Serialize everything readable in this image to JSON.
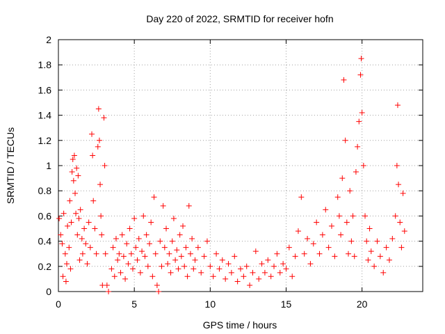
{
  "chart_data": {
    "type": "scatter",
    "title": "Day 220 of 2022, SRMTID for receiver hofn",
    "xlabel": "GPS time / hours",
    "ylabel": "SRMTID / TECUs",
    "xlim": [
      0,
      24
    ],
    "ylim": [
      0,
      2
    ],
    "xticks": [
      0,
      5,
      10,
      15,
      20
    ],
    "xtick_labels": [
      "0",
      "5",
      "10",
      "15",
      "20"
    ],
    "yticks": [
      0,
      0.2,
      0.4,
      0.6,
      0.8,
      1,
      1.2,
      1.4,
      1.6,
      1.8,
      2
    ],
    "ytick_labels": [
      "0",
      "0.2",
      "0.4",
      "0.6",
      "0.8",
      "1",
      "1.2",
      "1.4",
      "1.6",
      "1.8",
      "2"
    ],
    "grid": true,
    "marker": "+",
    "series": [
      {
        "name": "SRMTID",
        "color": "#ff0000",
        "points": [
          [
            0.05,
            0.58
          ],
          [
            0.15,
            0.45
          ],
          [
            0.25,
            0.38
          ],
          [
            0.3,
            0.12
          ],
          [
            0.35,
            0.62
          ],
          [
            0.45,
            0.3
          ],
          [
            0.5,
            0.08
          ],
          [
            0.55,
            0.22
          ],
          [
            0.6,
            0.52
          ],
          [
            0.7,
            0.35
          ],
          [
            0.75,
            0.72
          ],
          [
            0.8,
            0.18
          ],
          [
            0.85,
            0.55
          ],
          [
            0.9,
            0.95
          ],
          [
            0.95,
            1.05
          ],
          [
            1.0,
            0.88
          ],
          [
            1.05,
            1.08
          ],
          [
            1.1,
            0.78
          ],
          [
            1.15,
            0.62
          ],
          [
            1.2,
            0.98
          ],
          [
            1.25,
            0.45
          ],
          [
            1.3,
            0.92
          ],
          [
            1.35,
            0.58
          ],
          [
            1.4,
            0.25
          ],
          [
            1.45,
            0.65
          ],
          [
            1.55,
            0.42
          ],
          [
            1.6,
            0.3
          ],
          [
            1.7,
            0.5
          ],
          [
            1.8,
            0.38
          ],
          [
            1.9,
            0.22
          ],
          [
            2.0,
            0.55
          ],
          [
            2.1,
            0.35
          ],
          [
            2.2,
            1.25
          ],
          [
            2.25,
            1.08
          ],
          [
            2.3,
            0.72
          ],
          [
            2.4,
            0.5
          ],
          [
            2.5,
            0.3
          ],
          [
            2.6,
            1.15
          ],
          [
            2.65,
            1.45
          ],
          [
            2.7,
            1.2
          ],
          [
            2.75,
            0.85
          ],
          [
            2.8,
            0.6
          ],
          [
            2.85,
            0.45
          ],
          [
            2.9,
            0.05
          ],
          [
            3.0,
            1.38
          ],
          [
            3.05,
            1.0
          ],
          [
            3.1,
            0.3
          ],
          [
            3.2,
            0.05
          ],
          [
            3.3,
            0.0
          ],
          [
            3.5,
            0.18
          ],
          [
            3.6,
            0.35
          ],
          [
            3.7,
            0.12
          ],
          [
            3.8,
            0.42
          ],
          [
            3.9,
            0.25
          ],
          [
            4.0,
            0.3
          ],
          [
            4.1,
            0.15
          ],
          [
            4.2,
            0.45
          ],
          [
            4.3,
            0.28
          ],
          [
            4.4,
            0.1
          ],
          [
            4.5,
            0.38
          ],
          [
            4.6,
            0.22
          ],
          [
            4.7,
            0.5
          ],
          [
            4.8,
            0.3
          ],
          [
            4.9,
            0.18
          ],
          [
            5.0,
            0.58
          ],
          [
            5.1,
            0.35
          ],
          [
            5.2,
            0.25
          ],
          [
            5.3,
            0.42
          ],
          [
            5.4,
            0.15
          ],
          [
            5.5,
            0.32
          ],
          [
            5.6,
            0.6
          ],
          [
            5.7,
            0.28
          ],
          [
            5.8,
            0.45
          ],
          [
            5.9,
            0.2
          ],
          [
            6.0,
            0.38
          ],
          [
            6.1,
            0.55
          ],
          [
            6.2,
            0.12
          ],
          [
            6.3,
            0.75
          ],
          [
            6.4,
            0.3
          ],
          [
            6.5,
            0.05
          ],
          [
            6.6,
            0.0
          ],
          [
            6.7,
            0.4
          ],
          [
            6.8,
            0.2
          ],
          [
            6.9,
            0.68
          ],
          [
            7.0,
            0.35
          ],
          [
            7.1,
            0.5
          ],
          [
            7.2,
            0.22
          ],
          [
            7.3,
            0.3
          ],
          [
            7.4,
            0.15
          ],
          [
            7.5,
            0.4
          ],
          [
            7.6,
            0.58
          ],
          [
            7.7,
            0.25
          ],
          [
            7.8,
            0.33
          ],
          [
            7.9,
            0.18
          ],
          [
            8.0,
            0.45
          ],
          [
            8.1,
            0.28
          ],
          [
            8.2,
            0.52
          ],
          [
            8.3,
            0.2
          ],
          [
            8.4,
            0.35
          ],
          [
            8.5,
            0.12
          ],
          [
            8.6,
            0.68
          ],
          [
            8.7,
            0.3
          ],
          [
            8.8,
            0.42
          ],
          [
            8.9,
            0.18
          ],
          [
            9.0,
            0.25
          ],
          [
            9.2,
            0.35
          ],
          [
            9.4,
            0.15
          ],
          [
            9.6,
            0.28
          ],
          [
            9.8,
            0.4
          ],
          [
            10.0,
            0.2
          ],
          [
            10.2,
            0.12
          ],
          [
            10.4,
            0.3
          ],
          [
            10.6,
            0.18
          ],
          [
            10.8,
            0.25
          ],
          [
            11.0,
            0.1
          ],
          [
            11.2,
            0.22
          ],
          [
            11.4,
            0.15
          ],
          [
            11.6,
            0.28
          ],
          [
            11.8,
            0.08
          ],
          [
            12.0,
            0.18
          ],
          [
            12.2,
            0.12
          ],
          [
            12.4,
            0.2
          ],
          [
            12.6,
            0.05
          ],
          [
            12.8,
            0.15
          ],
          [
            13.0,
            0.32
          ],
          [
            13.2,
            0.1
          ],
          [
            13.4,
            0.22
          ],
          [
            13.6,
            0.15
          ],
          [
            13.8,
            0.25
          ],
          [
            14.0,
            0.12
          ],
          [
            14.2,
            0.2
          ],
          [
            14.4,
            0.3
          ],
          [
            14.6,
            0.15
          ],
          [
            14.8,
            0.22
          ],
          [
            15.0,
            0.18
          ],
          [
            15.2,
            0.35
          ],
          [
            15.4,
            0.12
          ],
          [
            15.6,
            0.28
          ],
          [
            15.8,
            0.48
          ],
          [
            16.0,
            0.75
          ],
          [
            16.2,
            0.3
          ],
          [
            16.4,
            0.42
          ],
          [
            16.6,
            0.22
          ],
          [
            16.8,
            0.38
          ],
          [
            17.0,
            0.55
          ],
          [
            17.2,
            0.3
          ],
          [
            17.4,
            0.45
          ],
          [
            17.6,
            0.65
          ],
          [
            17.8,
            0.35
          ],
          [
            18.0,
            0.52
          ],
          [
            18.2,
            0.28
          ],
          [
            18.4,
            0.75
          ],
          [
            18.5,
            0.6
          ],
          [
            18.6,
            0.45
          ],
          [
            18.7,
            0.9
          ],
          [
            18.8,
            1.68
          ],
          [
            18.9,
            1.2
          ],
          [
            19.0,
            0.55
          ],
          [
            19.1,
            0.3
          ],
          [
            19.2,
            0.8
          ],
          [
            19.3,
            0.4
          ],
          [
            19.4,
            0.6
          ],
          [
            19.5,
            0.28
          ],
          [
            19.6,
            0.95
          ],
          [
            19.7,
            1.15
          ],
          [
            19.8,
            1.35
          ],
          [
            19.9,
            1.72
          ],
          [
            19.95,
            1.85
          ],
          [
            20.0,
            1.42
          ],
          [
            20.1,
            1.0
          ],
          [
            20.2,
            0.6
          ],
          [
            20.3,
            0.4
          ],
          [
            20.4,
            0.25
          ],
          [
            20.5,
            0.5
          ],
          [
            20.6,
            0.32
          ],
          [
            20.8,
            0.2
          ],
          [
            21.0,
            0.4
          ],
          [
            21.2,
            0.28
          ],
          [
            21.4,
            0.15
          ],
          [
            21.6,
            0.35
          ],
          [
            21.8,
            0.25
          ],
          [
            22.0,
            0.42
          ],
          [
            22.2,
            0.6
          ],
          [
            22.3,
            1.0
          ],
          [
            22.35,
            1.48
          ],
          [
            22.4,
            0.85
          ],
          [
            22.5,
            0.55
          ],
          [
            22.6,
            0.35
          ],
          [
            22.7,
            0.78
          ],
          [
            22.8,
            0.48
          ]
        ]
      }
    ]
  }
}
